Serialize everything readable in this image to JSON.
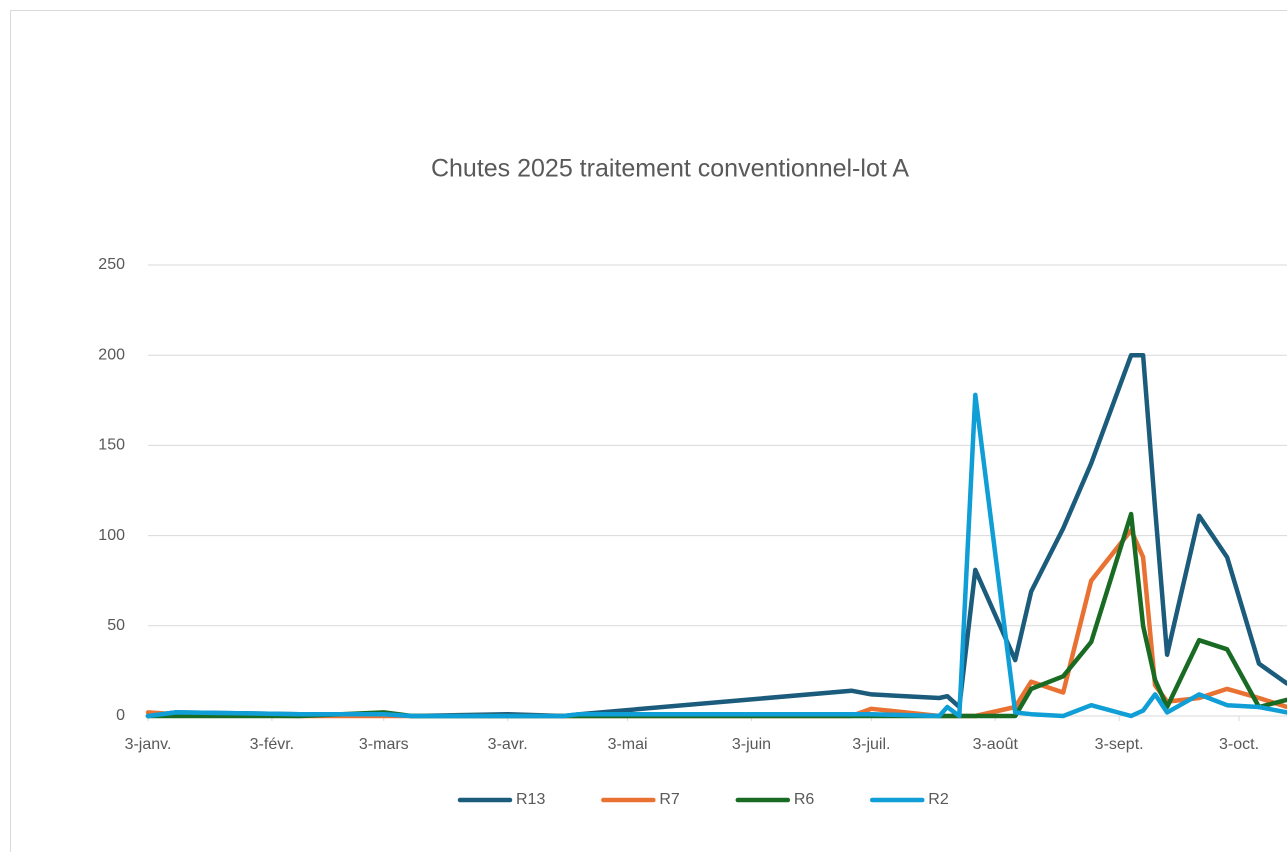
{
  "chart_data": {
    "type": "line",
    "title": "Chutes 2025 traitement conventionnel-lot A",
    "x": [
      "01-03",
      "01-10",
      "02-10",
      "03-03",
      "03-10",
      "04-03",
      "04-17",
      "04-21",
      "06-28",
      "07-03",
      "07-20",
      "07-22",
      "07-25",
      "07-29",
      "08-08",
      "08-12",
      "08-20",
      "08-27",
      "09-06",
      "09-09",
      "09-12",
      "09-15",
      "09-23",
      "09-30",
      "10-08",
      "10-15"
    ],
    "series": [
      {
        "name": "R13",
        "color": "#1b5b7c",
        "values": [
          0,
          2,
          1,
          1,
          0,
          1,
          0,
          1,
          14,
          12,
          10,
          11,
          5,
          81,
          31,
          69,
          104,
          140,
          200,
          200,
          115,
          34,
          111,
          88,
          29,
          18
        ]
      },
      {
        "name": "R7",
        "color": "#e97132",
        "values": [
          2,
          1,
          0,
          0,
          0,
          0,
          0,
          0,
          0,
          4,
          0,
          0,
          0,
          0,
          5,
          19,
          13,
          75,
          103,
          88,
          17,
          8,
          10,
          15,
          10,
          5
        ]
      },
      {
        "name": "R6",
        "color": "#196b24",
        "values": [
          0,
          0,
          0,
          2,
          0,
          0,
          0,
          0,
          0,
          0,
          0,
          0,
          0,
          0,
          0,
          15,
          22,
          41,
          112,
          50,
          20,
          5,
          42,
          37,
          5,
          9
        ]
      },
      {
        "name": "R2",
        "color": "#0f9ed5",
        "values": [
          0,
          2,
          1,
          1,
          0,
          0,
          0,
          1,
          1,
          1,
          0,
          5,
          0,
          178,
          2,
          1,
          0,
          6,
          0,
          3,
          12,
          2,
          12,
          6,
          5,
          2
        ]
      }
    ],
    "xlim": [
      "01-03",
      "10-15"
    ],
    "xticks": [
      {
        "value": "01-03",
        "label": "3-janv."
      },
      {
        "value": "02-03",
        "label": "3-févr."
      },
      {
        "value": "03-03",
        "label": "3-mars"
      },
      {
        "value": "04-03",
        "label": "3-avr."
      },
      {
        "value": "05-03",
        "label": "3-mai"
      },
      {
        "value": "06-03",
        "label": "3-juin"
      },
      {
        "value": "07-03",
        "label": "3-juil."
      },
      {
        "value": "08-03",
        "label": "3-août"
      },
      {
        "value": "09-03",
        "label": "3-sept."
      },
      {
        "value": "10-03",
        "label": "3-oct."
      }
    ],
    "ylim": [
      0,
      250
    ],
    "yticks": [
      0,
      50,
      100,
      150,
      200,
      250
    ],
    "grid": true,
    "legend": "bottom"
  }
}
